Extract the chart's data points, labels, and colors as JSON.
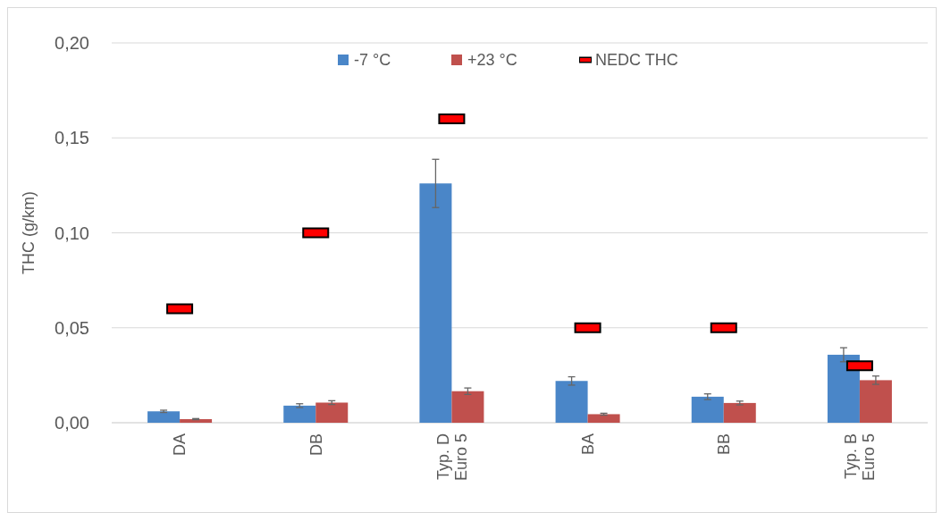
{
  "chart_data": {
    "type": "bar",
    "ylabel": "THC (g/km)",
    "categories": [
      "DA",
      "DB",
      "Typ. D\nEuro 5",
      "BA",
      "BB",
      "Typ. B\nEuro 5"
    ],
    "series": [
      {
        "name": "-7 °C",
        "color": "#4a86c8",
        "values": [
          0.006,
          0.009,
          0.126,
          0.022,
          0.0137,
          0.0358
        ],
        "errors": [
          0.0006,
          0.001,
          0.0127,
          0.0022,
          0.0015,
          0.0037
        ]
      },
      {
        "name": "+23 °C",
        "color": "#c0504d",
        "values": [
          0.0019,
          0.0106,
          0.0166,
          0.0045,
          0.0104,
          0.0224
        ],
        "errors": [
          0.0003,
          0.001,
          0.0017,
          0.0005,
          0.001,
          0.0022
        ]
      },
      {
        "name": "NEDC THC",
        "type": "scatter",
        "color": "#ff0000",
        "values": [
          0.06,
          0.1,
          0.16,
          0.05,
          0.05,
          0.03
        ]
      }
    ],
    "ylim": [
      0,
      0.2
    ],
    "yticks": [
      {
        "value": 0,
        "label": "0,00"
      },
      {
        "value": 0.05,
        "label": "0,05"
      },
      {
        "value": 0.1,
        "label": "0,10"
      },
      {
        "value": 0.15,
        "label": "0,15"
      },
      {
        "value": 0.2,
        "label": "0,20"
      }
    ],
    "grid": "y",
    "legend": "top"
  }
}
